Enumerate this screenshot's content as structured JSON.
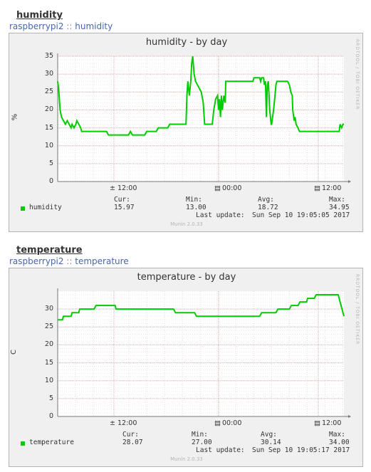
{
  "sections": [
    {
      "title": "humidity",
      "breadcrumb": {
        "host": "raspberrypi2",
        "separator": "::",
        "plugin": "humidity"
      },
      "graph_title": "humidity - by day",
      "vlabel": "%",
      "rrd_credit": "RRDTOOL / TOBI OETIKER",
      "legend": {
        "series_name": "humidity",
        "headers": [
          "Cur:",
          "Min:",
          "Avg:",
          "Max:"
        ],
        "values": [
          "15.97",
          "13.00",
          "18.72",
          "34.95"
        ],
        "last_update_label": "Last update:",
        "last_update_value": "Sun Sep 10 19:05:05 2017"
      },
      "footer": "Munin 2.0.33",
      "series_color": "#00cc00"
    },
    {
      "title": "temperature",
      "breadcrumb": {
        "host": "raspberrypi2",
        "separator": "::",
        "plugin": "temperature"
      },
      "graph_title": "temperature - by day",
      "vlabel": "C",
      "rrd_credit": "RRDTOOL / TOBI OETIKER",
      "legend": {
        "series_name": "temperature",
        "headers": [
          "Cur:",
          "Min:",
          "Avg:",
          "Max:"
        ],
        "values": [
          "28.07",
          "27.00",
          "30.14",
          "34.00"
        ],
        "last_update_label": "Last update:",
        "last_update_value": "Sun Sep 10 19:05:17 2017"
      },
      "footer": "Munin 2.0.33",
      "series_color": "#00cc00"
    }
  ],
  "chart_data": [
    {
      "type": "line",
      "title": "humidity - by day",
      "ylabel": "%",
      "xlabel": "",
      "ylim": [
        0,
        35
      ],
      "yticks": [
        0,
        5,
        10,
        15,
        20,
        25,
        30,
        35
      ],
      "xlim": [
        9.0,
        33.1
      ],
      "xticks": [
        {
          "x": 12,
          "label": "12:00"
        },
        {
          "x": 24,
          "label": "00:00"
        },
        {
          "x": 36,
          "label": "12:00"
        }
      ],
      "grid": true,
      "series": [
        {
          "name": "humidity",
          "points": [
            [
              9.0,
              28
            ],
            [
              9.1,
              26
            ],
            [
              9.25,
              20
            ],
            [
              9.4,
              18
            ],
            [
              9.6,
              17
            ],
            [
              9.8,
              16
            ],
            [
              10.0,
              17
            ],
            [
              10.2,
              16
            ],
            [
              10.4,
              15
            ],
            [
              10.5,
              16
            ],
            [
              10.7,
              15
            ],
            [
              10.9,
              16
            ],
            [
              11.0,
              17
            ],
            [
              11.2,
              16
            ],
            [
              11.4,
              15
            ],
            [
              11.5,
              14
            ],
            [
              12.5,
              14
            ],
            [
              13.5,
              14
            ],
            [
              14.1,
              14
            ],
            [
              14.3,
              13
            ],
            [
              16.4,
              13
            ],
            [
              16.6,
              14
            ],
            [
              16.8,
              13
            ],
            [
              18.1,
              13
            ],
            [
              18.3,
              14
            ],
            [
              19.3,
              14
            ],
            [
              19.5,
              15
            ],
            [
              20.5,
              15
            ],
            [
              20.7,
              16
            ],
            [
              22.2,
              16
            ],
            [
              22.4,
              16
            ],
            [
              22.5,
              24
            ],
            [
              22.6,
              28
            ],
            [
              22.75,
              24
            ],
            [
              22.9,
              28
            ],
            [
              23.0,
              33
            ],
            [
              23.1,
              35
            ],
            [
              23.25,
              30
            ],
            [
              23.4,
              28
            ],
            [
              23.6,
              27
            ],
            [
              23.8,
              26
            ],
            [
              24.0,
              25
            ],
            [
              24.2,
              22
            ],
            [
              24.3,
              18
            ],
            [
              24.35,
              16
            ],
            [
              25.0,
              16
            ],
            [
              25.15,
              16
            ],
            [
              25.3,
              20
            ],
            [
              25.5,
              23
            ],
            [
              25.7,
              24
            ],
            [
              25.8,
              20
            ],
            [
              25.9,
              23
            ],
            [
              26.0,
              18
            ],
            [
              26.1,
              24
            ],
            [
              26.2,
              20
            ],
            [
              26.35,
              24
            ],
            [
              26.5,
              22
            ],
            [
              26.55,
              28
            ],
            [
              26.7,
              28
            ],
            [
              29.4,
              28
            ],
            [
              29.5,
              29
            ],
            [
              30.1,
              29
            ],
            [
              30.2,
              28
            ],
            [
              30.3,
              29
            ],
            [
              30.5,
              29
            ],
            [
              30.6,
              27
            ],
            [
              30.7,
              28
            ],
            [
              30.8,
              18
            ],
            [
              30.9,
              27
            ],
            [
              31.0,
              28
            ],
            [
              31.15,
              20
            ],
            [
              31.3,
              16
            ],
            [
              31.35,
              16
            ],
            [
              31.45,
              18
            ],
            [
              31.55,
              20
            ],
            [
              31.7,
              24
            ],
            [
              31.8,
              27
            ],
            [
              31.9,
              28
            ],
            [
              33.0,
              28
            ],
            [
              33.2,
              27
            ],
            [
              33.35,
              25
            ],
            [
              33.5,
              24
            ],
            [
              33.55,
              20
            ],
            [
              33.7,
              17
            ],
            [
              33.8,
              18
            ],
            [
              33.9,
              16
            ],
            [
              34.1,
              15
            ],
            [
              34.25,
              14
            ],
            [
              35.8,
              14
            ],
            [
              37.5,
              14
            ],
            [
              38.4,
              14
            ],
            [
              38.5,
              16
            ],
            [
              38.65,
              15
            ],
            [
              38.8,
              16
            ],
            [
              38.9,
              16
            ]
          ]
        }
      ]
    },
    {
      "type": "line",
      "title": "temperature - by day",
      "ylabel": "C",
      "xlabel": "",
      "ylim": [
        0,
        35
      ],
      "yticks": [
        0,
        5,
        10,
        15,
        20,
        25,
        30
      ],
      "xlim": [
        9.0,
        33.1
      ],
      "xticks": [
        {
          "x": 12,
          "label": "12:00"
        },
        {
          "x": 24,
          "label": "00:00"
        },
        {
          "x": 36,
          "label": "12:00"
        }
      ],
      "grid": true,
      "series": [
        {
          "name": "temperature",
          "points": [
            [
              9.0,
              27
            ],
            [
              9.5,
              27
            ],
            [
              9.6,
              28
            ],
            [
              10.4,
              28
            ],
            [
              10.5,
              29
            ],
            [
              11.2,
              29
            ],
            [
              11.3,
              30
            ],
            [
              12.8,
              30
            ],
            [
              13.0,
              31
            ],
            [
              15.0,
              31
            ],
            [
              15.1,
              30
            ],
            [
              21.1,
              30
            ],
            [
              21.3,
              29
            ],
            [
              23.3,
              29
            ],
            [
              23.5,
              28
            ],
            [
              30.1,
              28
            ],
            [
              30.3,
              29
            ],
            [
              31.8,
              29
            ],
            [
              32.0,
              30
            ],
            [
              33.2,
              30
            ],
            [
              33.4,
              31
            ],
            [
              34.1,
              31
            ],
            [
              34.3,
              32
            ],
            [
              35.0,
              32
            ],
            [
              35.1,
              33
            ],
            [
              35.8,
              33
            ],
            [
              36.0,
              34
            ],
            [
              38.3,
              34
            ],
            [
              38.5,
              32
            ],
            [
              38.7,
              30
            ],
            [
              38.9,
              28
            ]
          ]
        }
      ]
    }
  ]
}
